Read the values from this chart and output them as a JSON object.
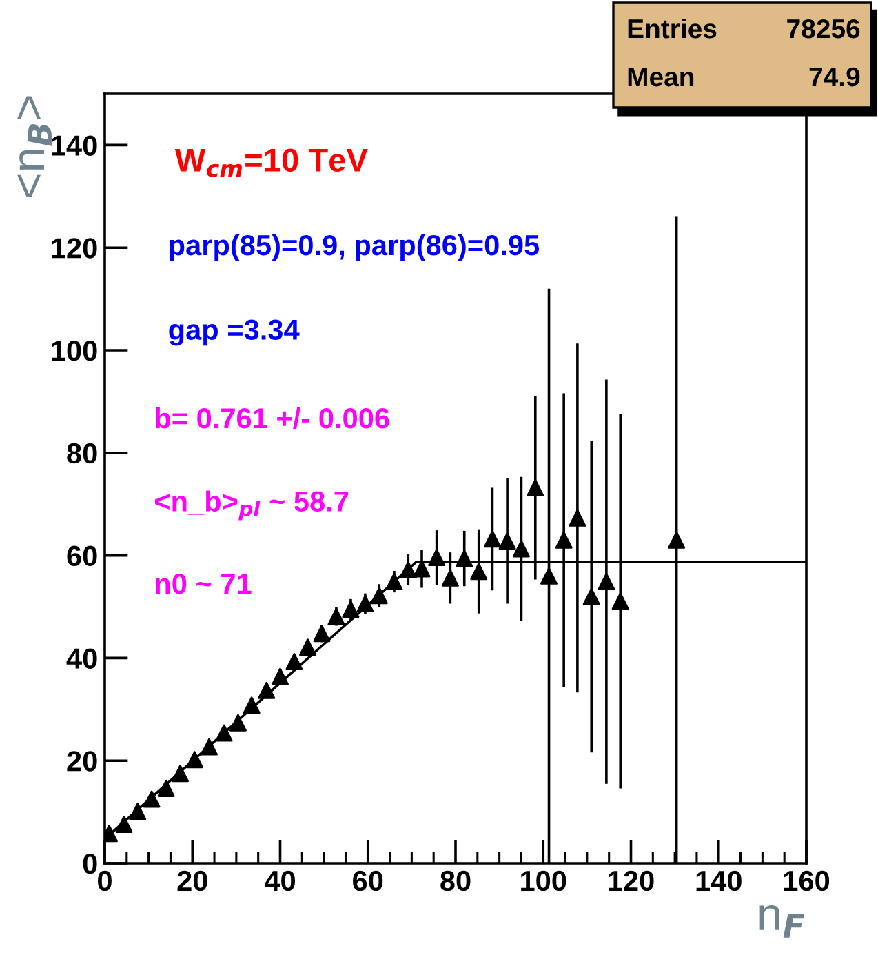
{
  "chart_data": {
    "type": "scatter",
    "xlabel": "n$_{F}$",
    "ylabel": "<n$_{B}$>",
    "xlim": [
      0,
      160
    ],
    "ylim": [
      0,
      150
    ],
    "xticks": [
      0,
      20,
      40,
      60,
      80,
      100,
      120,
      140,
      160
    ],
    "yticks": [
      0,
      20,
      40,
      60,
      80,
      100,
      120,
      140
    ],
    "grid": false,
    "legend": false,
    "series": [
      {
        "color": "#000000",
        "marker": "triangle",
        "x": [
          1.0,
          4.4,
          7.5,
          10.7,
          14.0,
          17.2,
          20.5,
          23.8,
          27.2,
          30.4,
          33.5,
          36.9,
          40.0,
          43.2,
          46.3,
          49.5,
          52.8,
          56.1,
          59.4,
          62.6,
          66.0,
          69.2,
          72.3,
          75.7,
          78.8,
          82.0,
          85.3,
          88.4,
          91.8,
          95.0,
          98.2,
          101.3,
          104.7,
          107.8,
          111.0,
          114.4,
          117.6,
          130.4
        ],
        "values": [
          5.8,
          7.6,
          10.1,
          12.5,
          14.6,
          17.5,
          20.2,
          22.7,
          25.4,
          27.4,
          30.8,
          33.7,
          36.4,
          39.3,
          42.1,
          44.8,
          48.1,
          49.5,
          50.6,
          52.2,
          54.9,
          57.2,
          57.4,
          59.6,
          55.6,
          59.4,
          56.9,
          63.2,
          62.8,
          61.3,
          73.2,
          56.0,
          63.0,
          67.3,
          52.0,
          54.9,
          51.1,
          63.0
        ],
        "errors": [
          0.8,
          0.8,
          0.9,
          0.9,
          1.0,
          1.0,
          1.1,
          1.1,
          1.2,
          1.2,
          1.3,
          1.4,
          1.4,
          1.5,
          1.6,
          1.7,
          1.8,
          2.0,
          2.0,
          2.2,
          2.1,
          3.0,
          3.7,
          5.3,
          5.0,
          5.4,
          8.2,
          10.0,
          12.2,
          14.0,
          17.9,
          56.0,
          28.6,
          34.0,
          30.4,
          39.4,
          36.5,
          63.0
        ]
      },
      {
        "type": "line",
        "color": "#000000",
        "x": [
          1,
          71,
          160
        ],
        "values": [
          5.5,
          58.7,
          58.7
        ]
      }
    ],
    "annotations": [
      "W$_{cm}$=10 TeV",
      "parp(85)=0.9, parp(86)=0.95",
      "gap =3.34",
      "b= 0.761 +/- 0.006",
      "<n_b>$_{pl}$ ~ 58.7",
      "n0 ~ 71",
      "Entries",
      "78256",
      "Mean",
      "74.9"
    ]
  }
}
